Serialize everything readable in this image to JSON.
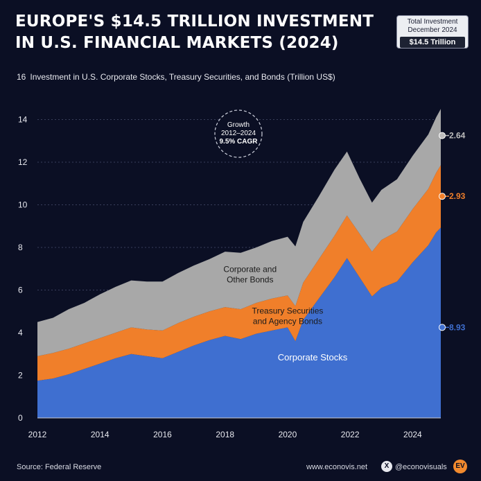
{
  "header": {
    "title_line1": "EUROPE'S $14.5 TRILLION INVESTMENT",
    "title_line2": "IN U.S. FINANCIAL MARKETS (2024)",
    "badge_line1": "Total Investment",
    "badge_line2": "December 2024",
    "badge_value": "$14.5 Trillion",
    "subtitle": "Investment in U.S. Corporate Stocks, Treasury Securities, and Bonds (Trillion US$)"
  },
  "footer": {
    "source": "Source: Federal Reserve",
    "website": "www.econovis.net",
    "handle": "@econovisuals",
    "x_icon_glyph": "X",
    "logo_glyph": "EV"
  },
  "colors": {
    "background": "#0b0f24",
    "stocks": "#3f6fd0",
    "treasury": "#f07f2a",
    "bonds": "#a8a8a8",
    "grid": "#3a3f5c"
  },
  "chart_data": {
    "type": "area",
    "stacked": true,
    "x": [
      2012.0,
      2012.5,
      2013.0,
      2013.5,
      2014.0,
      2014.5,
      2015.0,
      2015.5,
      2016.0,
      2016.5,
      2017.0,
      2017.5,
      2018.0,
      2018.5,
      2019.0,
      2019.5,
      2020.0,
      2020.25,
      2020.5,
      2021.0,
      2021.5,
      2021.9,
      2022.3,
      2022.7,
      2023.0,
      2023.5,
      2024.0,
      2024.5,
      2024.75,
      2024.9
    ],
    "series": [
      {
        "name": "Corporate Stocks",
        "values": [
          1.75,
          1.85,
          2.05,
          2.3,
          2.55,
          2.8,
          3.0,
          2.9,
          2.8,
          3.1,
          3.4,
          3.65,
          3.85,
          3.7,
          3.95,
          4.1,
          4.25,
          3.6,
          4.6,
          5.6,
          6.6,
          7.5,
          6.6,
          5.7,
          6.1,
          6.4,
          7.3,
          8.1,
          8.7,
          8.93
        ]
      },
      {
        "name": "Treasury Securities and Agency Bonds",
        "values": [
          1.15,
          1.2,
          1.2,
          1.2,
          1.2,
          1.2,
          1.25,
          1.25,
          1.3,
          1.35,
          1.35,
          1.35,
          1.35,
          1.4,
          1.45,
          1.5,
          1.5,
          1.65,
          1.75,
          1.85,
          1.95,
          2.0,
          2.05,
          2.1,
          2.25,
          2.35,
          2.5,
          2.65,
          2.8,
          2.93
        ]
      },
      {
        "name": "Corporate and Other Bonds",
        "values": [
          1.6,
          1.65,
          1.85,
          1.9,
          2.05,
          2.15,
          2.2,
          2.25,
          2.3,
          2.35,
          2.4,
          2.45,
          2.6,
          2.65,
          2.6,
          2.7,
          2.75,
          2.8,
          2.85,
          2.95,
          3.1,
          3.0,
          2.6,
          2.3,
          2.35,
          2.45,
          2.5,
          2.55,
          2.6,
          2.64
        ]
      }
    ],
    "series_labels": [
      [
        "Corporate Stocks"
      ],
      [
        "Treasury Securities",
        "and Agency Bonds"
      ],
      [
        "Corporate and",
        "Other Bonds"
      ]
    ],
    "end_labels": [
      "8.93",
      "2.93",
      "2.64"
    ],
    "x_ticks": [
      "2012",
      "2014",
      "2016",
      "2018",
      "2020",
      "2022",
      "2024"
    ],
    "y_ticks": [
      "0",
      "2",
      "4",
      "6",
      "8",
      "10",
      "12",
      "14",
      "16"
    ],
    "xlim": [
      2012,
      2024.9
    ],
    "ylim": [
      0,
      16
    ],
    "grid": "horizontal dashed",
    "annotation": {
      "line1": "Growth",
      "line2": "2012–2024",
      "line3": "9.5% CAGR"
    }
  }
}
